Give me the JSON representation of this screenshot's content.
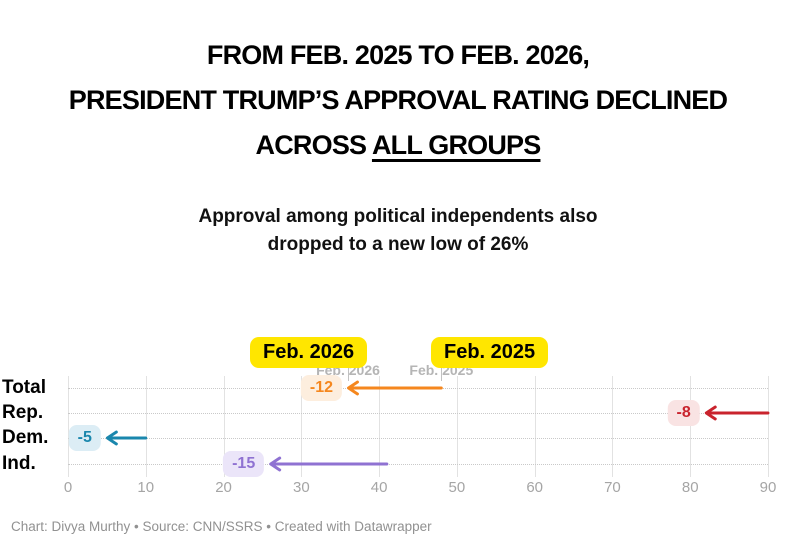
{
  "title": {
    "line1": "FROM FEB. 2025 TO FEB. 2026,",
    "line2": "PRESIDENT TRUMP’S APPROVAL RATING DECLINED",
    "line3_prefix": "ACROSS ",
    "line3_underlined": "ALL GROUPS"
  },
  "subtitle": {
    "line1": "Approval among political independents also",
    "line2": "dropped to a new low of 26%"
  },
  "annotations": [
    {
      "label": "Feb. 2026",
      "anchor_value": 36,
      "bg": "#ffe600"
    },
    {
      "label": "Feb. 2025",
      "anchor_value": 48,
      "bg": "#ffe600"
    }
  ],
  "footer": "Chart: Divya Murthy • Source: CNN/SSRS • Created with Datawrapper",
  "chart_data": {
    "type": "arrow",
    "categories": [
      "Total",
      "Rep.",
      "Dem.",
      "Ind."
    ],
    "series": [
      {
        "name": "Feb. 2025",
        "values": [
          48,
          90,
          10,
          41
        ]
      },
      {
        "name": "Feb. 2026",
        "values": [
          36,
          82,
          5,
          26
        ]
      }
    ],
    "change_labels": [
      "-12",
      "-8",
      "-5",
      "-15"
    ],
    "arrow_colors": [
      "#f5871e",
      "#c9232d",
      "#1a87ad",
      "#8f72d2"
    ],
    "badge_backgrounds": [
      "#fdeede",
      "#f9e3e3",
      "#dcedf5",
      "#ebe5f9"
    ],
    "xlabel": "",
    "ylabel": "",
    "xlim": [
      0,
      90
    ],
    "x_ticks": [
      0,
      10,
      20,
      30,
      40,
      50,
      60,
      70,
      80,
      90
    ],
    "grid": true,
    "legend_position": "above-as-annotations"
  }
}
